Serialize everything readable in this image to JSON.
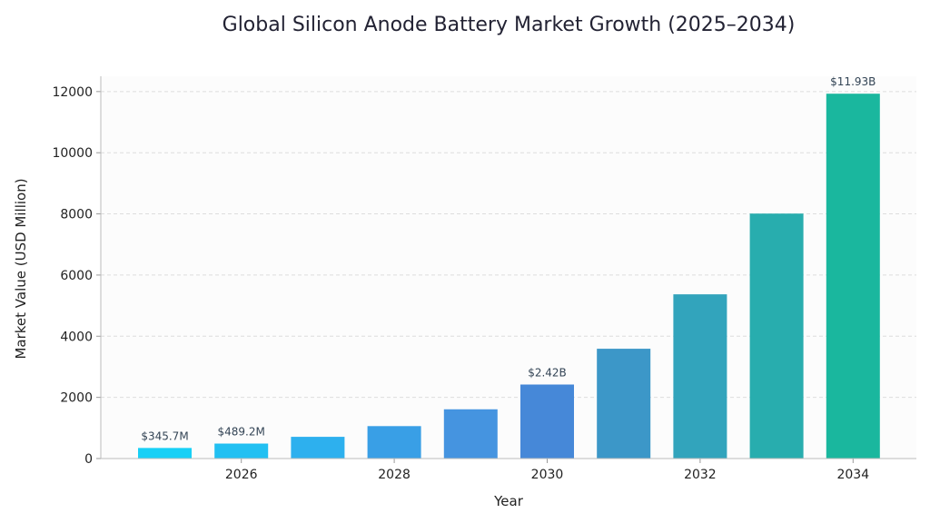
{
  "chart_data": {
    "type": "bar",
    "title": "Global Silicon Anode Battery Market Growth (2025–2034)",
    "xlabel": "Year",
    "ylabel": "Market Value (USD Million)",
    "categories": [
      "2025",
      "2026",
      "2027",
      "2028",
      "2029",
      "2030",
      "2031",
      "2032",
      "2033",
      "2034"
    ],
    "values": [
      345.7,
      489.2,
      710,
      1060,
      1610,
      2420,
      3590,
      5370,
      8010,
      11930
    ],
    "data_labels": [
      "$345.7M",
      "$489.2M",
      "",
      "",
      "",
      "$2.42B",
      "",
      "",
      "",
      "$11.93B"
    ],
    "x_ticks": [
      "2026",
      "2028",
      "2030",
      "2032",
      "2034"
    ],
    "y_ticks": [
      0,
      2000,
      4000,
      6000,
      8000,
      10000,
      12000
    ],
    "ylim": [
      0,
      12500
    ],
    "grid": true,
    "legend": "none",
    "colors": [
      "#18d0f6",
      "#22c0f2",
      "#2db0ee",
      "#399fe6",
      "#4594e0",
      "#4688d8",
      "#3c97c8",
      "#32a4bc",
      "#28adae",
      "#1ab79e"
    ],
    "plot_background": "#fcfcfc"
  }
}
